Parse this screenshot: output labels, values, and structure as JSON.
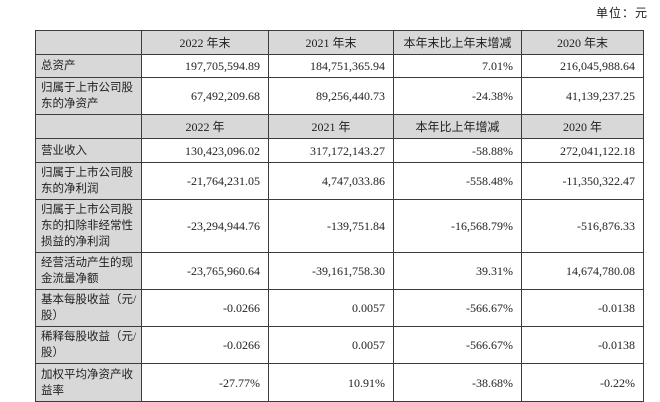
{
  "unit_label": "单位：元",
  "table": {
    "rows": [
      {
        "type": "header",
        "cells": [
          "",
          "2022 年末",
          "2021 年末",
          "本年末比上年末增减",
          "2020 年末"
        ]
      },
      {
        "type": "data",
        "cells": [
          "总资产",
          "197,705,594.89",
          "184,751,365.94",
          "7.01%",
          "216,045,988.64"
        ]
      },
      {
        "type": "data",
        "cells": [
          "归属于上市公司股东的净资产",
          "67,492,209.68",
          "89,256,440.73",
          "-24.38%",
          "41,139,237.25"
        ]
      },
      {
        "type": "header",
        "cells": [
          "",
          "2022 年",
          "2021 年",
          "本年比上年增减",
          "2020 年"
        ]
      },
      {
        "type": "data",
        "cells": [
          "营业收入",
          "130,423,096.02",
          "317,172,143.27",
          "-58.88%",
          "272,041,122.18"
        ]
      },
      {
        "type": "data",
        "cells": [
          "归属于上市公司股东的净利润",
          "-21,764,231.05",
          "4,747,033.86",
          "-558.48%",
          "-11,350,322.47"
        ]
      },
      {
        "type": "data",
        "cells": [
          "归属于上市公司股东的扣除非经常性损益的净利润",
          "-23,294,944.76",
          "-139,751.84",
          "-16,568.79%",
          "-516,876.33"
        ]
      },
      {
        "type": "data",
        "cells": [
          "经营活动产生的现金流量净额",
          "-23,765,960.64",
          "-39,161,758.30",
          "39.31%",
          "14,674,780.08"
        ]
      },
      {
        "type": "data",
        "cells": [
          "基本每股收益（元/股）",
          "-0.0266",
          "0.0057",
          "-566.67%",
          "-0.0138"
        ]
      },
      {
        "type": "data",
        "cells": [
          "稀释每股收益（元/股）",
          "-0.0266",
          "0.0057",
          "-566.67%",
          "-0.0138"
        ]
      },
      {
        "type": "data",
        "cells": [
          "加权平均净资产收益率",
          "-27.77%",
          "10.91%",
          "-38.68%",
          "-0.22%"
        ]
      }
    ],
    "colors": {
      "header_fill": "#d8d8d8",
      "border": "#3c3c3c",
      "text": "#1f1f1f"
    }
  }
}
